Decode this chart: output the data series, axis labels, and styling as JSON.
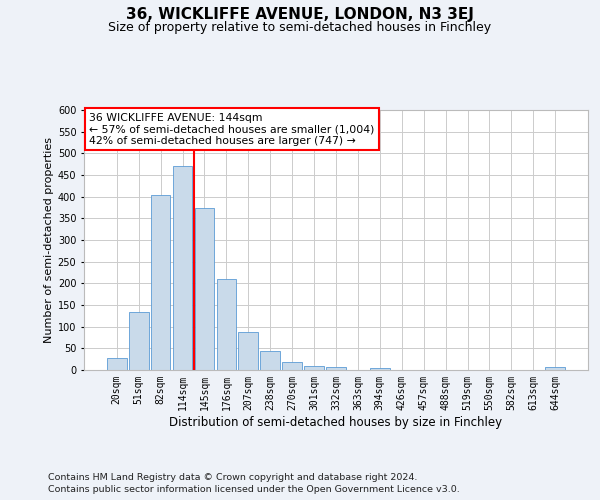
{
  "title": "36, WICKLIFFE AVENUE, LONDON, N3 3EJ",
  "subtitle": "Size of property relative to semi-detached houses in Finchley",
  "xlabel": "Distribution of semi-detached houses by size in Finchley",
  "ylabel": "Number of semi-detached properties",
  "footnote1": "Contains HM Land Registry data © Crown copyright and database right 2024.",
  "footnote2": "Contains public sector information licensed under the Open Government Licence v3.0.",
  "categories": [
    "20sqm",
    "51sqm",
    "82sqm",
    "114sqm",
    "145sqm",
    "176sqm",
    "207sqm",
    "238sqm",
    "270sqm",
    "301sqm",
    "332sqm",
    "363sqm",
    "394sqm",
    "426sqm",
    "457sqm",
    "488sqm",
    "519sqm",
    "550sqm",
    "582sqm",
    "613sqm",
    "644sqm"
  ],
  "values": [
    27,
    133,
    405,
    470,
    373,
    210,
    88,
    45,
    18,
    10,
    7,
    0,
    5,
    0,
    0,
    0,
    0,
    0,
    0,
    0,
    7
  ],
  "bar_color": "#c9daea",
  "bar_edge_color": "#5b9bd5",
  "annotation_line1": "36 WICKLIFFE AVENUE: 144sqm",
  "annotation_line2": "← 57% of semi-detached houses are smaller (1,004)",
  "annotation_line3": "42% of semi-detached houses are larger (747) →",
  "annotation_box_color": "white",
  "annotation_box_edge_color": "red",
  "vline_color": "red",
  "ylim": [
    0,
    600
  ],
  "yticks": [
    0,
    50,
    100,
    150,
    200,
    250,
    300,
    350,
    400,
    450,
    500,
    550,
    600
  ],
  "grid_color": "#cccccc",
  "background_color": "#eef2f8",
  "axes_background": "white",
  "title_fontsize": 11,
  "subtitle_fontsize": 9,
  "annot_fontsize": 7.8,
  "tick_fontsize": 7,
  "xlabel_fontsize": 8.5,
  "ylabel_fontsize": 8,
  "footnote_fontsize": 6.8
}
